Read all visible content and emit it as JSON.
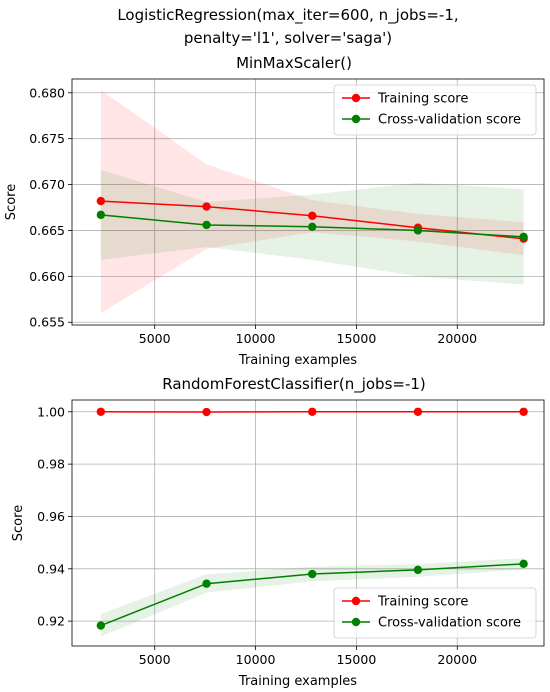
{
  "chart_data": [
    {
      "type": "line",
      "title": "LogisticRegression(max_iter=600, n_jobs=-1,\npenalty='l1', solver='saga')\nMinMaxScaler()",
      "title_lines": [
        "LogisticRegression(max_iter=600, n_jobs=-1,",
        "penalty='l1', solver='saga')",
        "MinMaxScaler()"
      ],
      "xlabel": "Training examples",
      "ylabel": "Score",
      "xlim": [
        900,
        24300
      ],
      "ylim": [
        0.6547,
        0.6815
      ],
      "xticks": [
        5000,
        10000,
        15000,
        20000
      ],
      "xtick_labels": [
        "5000",
        "10000",
        "15000",
        "20000"
      ],
      "yticks": [
        0.655,
        0.66,
        0.665,
        0.67,
        0.675,
        0.68
      ],
      "ytick_labels": [
        "0.655",
        "0.660",
        "0.665",
        "0.670",
        "0.675",
        "0.680"
      ],
      "grid": true,
      "legend_position": "top-right",
      "x": [
        2330,
        7570,
        12810,
        18050,
        23290
      ],
      "series": [
        {
          "name": "Training score",
          "color": "#ff0000",
          "values": [
            0.6682,
            0.6676,
            0.6666,
            0.6653,
            0.6641
          ],
          "band_lower": [
            0.656,
            0.663,
            0.6648,
            0.6638,
            0.6623
          ],
          "band_upper": [
            0.6803,
            0.6722,
            0.6683,
            0.6668,
            0.6659
          ]
        },
        {
          "name": "Cross-validation score",
          "color": "#008000",
          "values": [
            0.6667,
            0.6656,
            0.6654,
            0.665,
            0.6643
          ],
          "band_lower": [
            0.6618,
            0.6632,
            0.6618,
            0.66,
            0.6591
          ],
          "band_upper": [
            0.6716,
            0.6681,
            0.6689,
            0.6702,
            0.6695
          ]
        }
      ]
    },
    {
      "type": "line",
      "title": "RandomForestClassifier(n_jobs=-1)",
      "title_lines": [
        "RandomForestClassifier(n_jobs=-1)"
      ],
      "xlabel": "Training examples",
      "ylabel": "Score",
      "xlim": [
        900,
        24300
      ],
      "ylim": [
        0.9105,
        1.0045
      ],
      "xticks": [
        5000,
        10000,
        15000,
        20000
      ],
      "xtick_labels": [
        "5000",
        "10000",
        "15000",
        "20000"
      ],
      "yticks": [
        0.92,
        0.94,
        0.96,
        0.98,
        1.0
      ],
      "ytick_labels": [
        "0.92",
        "0.94",
        "0.96",
        "0.98",
        "1.00"
      ],
      "grid": true,
      "legend_position": "bottom-right",
      "x": [
        2330,
        7570,
        12810,
        18050,
        23290
      ],
      "series": [
        {
          "name": "Training score",
          "color": "#ff0000",
          "values": [
            1.0,
            0.9999,
            1.0,
            1.0,
            1.0
          ],
          "band_lower": [
            0.9998,
            0.9997,
            0.9998,
            0.9999,
            0.9999
          ],
          "band_upper": [
            1.0002,
            1.0001,
            1.0002,
            1.0001,
            1.0001
          ]
        },
        {
          "name": "Cross-validation score",
          "color": "#008000",
          "values": [
            0.9183,
            0.9343,
            0.938,
            0.9396,
            0.9419
          ],
          "band_lower": [
            0.9141,
            0.9309,
            0.9352,
            0.9369,
            0.9398
          ],
          "band_upper": [
            0.9227,
            0.9379,
            0.9408,
            0.9418,
            0.9441
          ]
        }
      ]
    }
  ]
}
